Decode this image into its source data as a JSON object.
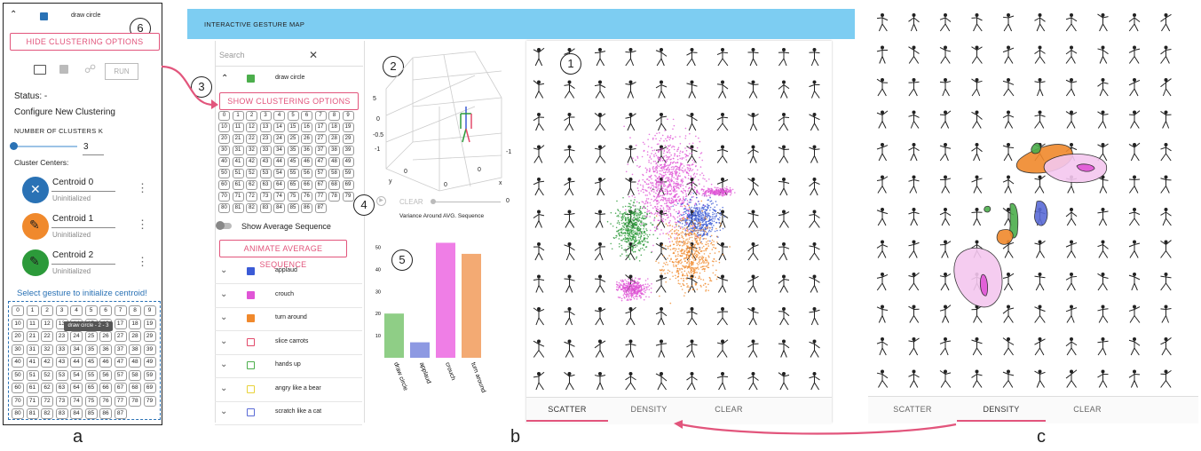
{
  "panel_a": {
    "header_title": "draw circle",
    "hide_btn": "HIDE CLUSTERING OPTIONS",
    "run_btn": "RUN",
    "status": "Status: -",
    "configure": "Configure New Clustering",
    "k_label": "NUMBER OF CLUSTERS K",
    "k_value": "3",
    "k_slider_fraction": 0.0,
    "centers_label": "Cluster Centers:",
    "centroids": [
      {
        "name": "Centroid 0",
        "status": "Uninitialized",
        "color": "#2a72b5",
        "icon": "close-icon"
      },
      {
        "name": "Centroid 1",
        "status": "Uninitialized",
        "color": "#f0892c",
        "icon": "pencil-icon"
      },
      {
        "name": "Centroid 2",
        "status": "Uninitialized",
        "color": "#2c9a3a",
        "icon": "pencil-icon"
      }
    ],
    "select_prompt": "Select gesture to initialize centroid!",
    "tooltip": "draw circle - 2 - 3",
    "grid_numbers": [
      "0",
      "1",
      "2",
      "3",
      "4",
      "5",
      "6",
      "7",
      "8",
      "9",
      "10",
      "11",
      "12",
      "13",
      "14",
      "15",
      "16",
      "17",
      "18",
      "19",
      "20",
      "21",
      "22",
      "23",
      "24",
      "25",
      "26",
      "27",
      "28",
      "29",
      "30",
      "31",
      "32",
      "33",
      "34",
      "35",
      "36",
      "37",
      "38",
      "39",
      "40",
      "41",
      "42",
      "43",
      "44",
      "45",
      "46",
      "47",
      "48",
      "49",
      "50",
      "51",
      "52",
      "53",
      "54",
      "55",
      "56",
      "57",
      "58",
      "59",
      "60",
      "61",
      "62",
      "63",
      "64",
      "65",
      "66",
      "67",
      "68",
      "69",
      "70",
      "71",
      "72",
      "73",
      "74",
      "75",
      "76",
      "77",
      "78",
      "79",
      "80",
      "81",
      "82",
      "83",
      "84",
      "85",
      "86",
      "87"
    ]
  },
  "panel_b": {
    "app_title": "INTERACTIVE GESTURE MAP",
    "search_placeholder": "Search",
    "draw_circle": "draw circle",
    "show_btn": "SHOW CLUSTERING OPTIONS",
    "grid_numbers": [
      "0",
      "1",
      "2",
      "3",
      "4",
      "5",
      "6",
      "7",
      "8",
      "9",
      "10",
      "11",
      "12",
      "13",
      "14",
      "15",
      "16",
      "17",
      "18",
      "19",
      "20",
      "21",
      "22",
      "23",
      "24",
      "25",
      "26",
      "27",
      "28",
      "29",
      "30",
      "31",
      "32",
      "33",
      "34",
      "35",
      "36",
      "37",
      "38",
      "39",
      "40",
      "41",
      "42",
      "43",
      "44",
      "45",
      "46",
      "47",
      "48",
      "49",
      "50",
      "51",
      "52",
      "53",
      "54",
      "55",
      "56",
      "57",
      "58",
      "59",
      "60",
      "61",
      "62",
      "63",
      "64",
      "65",
      "66",
      "67",
      "68",
      "69",
      "70",
      "71",
      "72",
      "73",
      "74",
      "75",
      "76",
      "77",
      "78",
      "79",
      "80",
      "81",
      "82",
      "83",
      "84",
      "85",
      "86",
      "87"
    ],
    "show_avg": "Show Average Sequence",
    "animate_btn": "ANIMATE AVERAGE SEQUENCE",
    "gestures": [
      {
        "label": "applaud",
        "color": "#3b5bd6",
        "checked": true
      },
      {
        "label": "crouch",
        "color": "#e055d6",
        "checked": true
      },
      {
        "label": "turn around",
        "color": "#f0892c",
        "checked": true
      },
      {
        "label": "slice carrots",
        "color": "#e24a6a",
        "checked": false
      },
      {
        "label": "hands up",
        "color": "#4cae4c",
        "checked": false
      },
      {
        "label": "angry like a bear",
        "color": "#e8d23a",
        "checked": false
      },
      {
        "label": "scratch like a cat",
        "color": "#5a6bd6",
        "checked": false
      }
    ],
    "axis3d": {
      "z_ticks": [
        "5",
        "0",
        "-0.5",
        "-1"
      ],
      "y_label": "y",
      "x_label": "x",
      "bottom_ticks": [
        "0",
        "0",
        "0"
      ],
      "right_tick": "-1"
    },
    "clear_label": "CLEAR",
    "slider_value": "0",
    "variance_title": "Variance Around AVG. Sequence",
    "tabs": [
      "SCATTER",
      "DENSITY",
      "CLEAR"
    ]
  },
  "panel_c": {
    "tabs": [
      "SCATTER",
      "DENSITY",
      "CLEAR"
    ]
  },
  "markers": [
    "1",
    "2",
    "3",
    "4",
    "5",
    "6"
  ],
  "sub_labels": [
    "a",
    "b",
    "c"
  ],
  "chart_data": {
    "type": "bar",
    "categories": [
      "draw circle",
      "applaud",
      "crouch",
      "turn around"
    ],
    "values": [
      20,
      7,
      52,
      47
    ],
    "colors": [
      "#8fce86",
      "#8d99e2",
      "#ef7ee6",
      "#f3aa73"
    ],
    "ylim": [
      0,
      55
    ],
    "yticks": [
      10,
      20,
      30,
      40,
      50
    ]
  }
}
